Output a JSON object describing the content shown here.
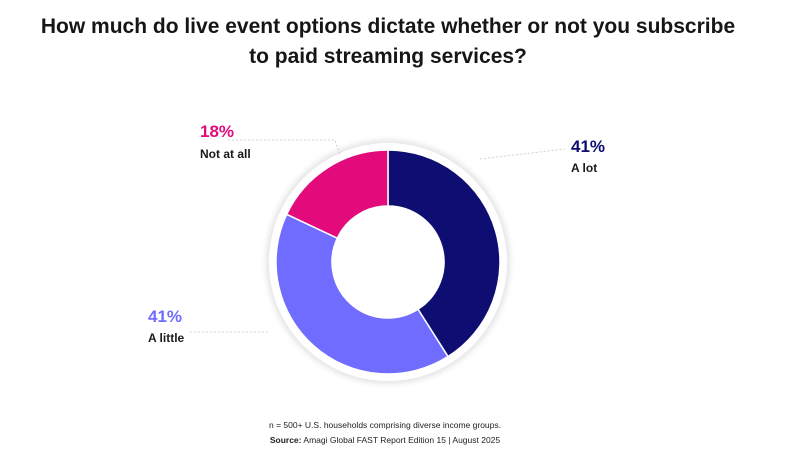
{
  "chart_data": {
    "type": "pie",
    "title_line1": "How much do live event options dictate whether or not you subscribe",
    "title_line2": "to paid streaming services?",
    "categories": [
      "A lot",
      "A little",
      "Not at all"
    ],
    "values": [
      41,
      41,
      18
    ],
    "value_labels": [
      "41%",
      "41%",
      "18%"
    ],
    "colors": [
      "#0d0d72",
      "#6f6cff",
      "#e30b7b"
    ],
    "donut": true
  },
  "footer": {
    "note": "n = 500+ U.S. households comprising diverse income groups.",
    "source_label": "Source:",
    "source_text": "Amagi Global FAST Report Edition 15 | August 2025"
  }
}
